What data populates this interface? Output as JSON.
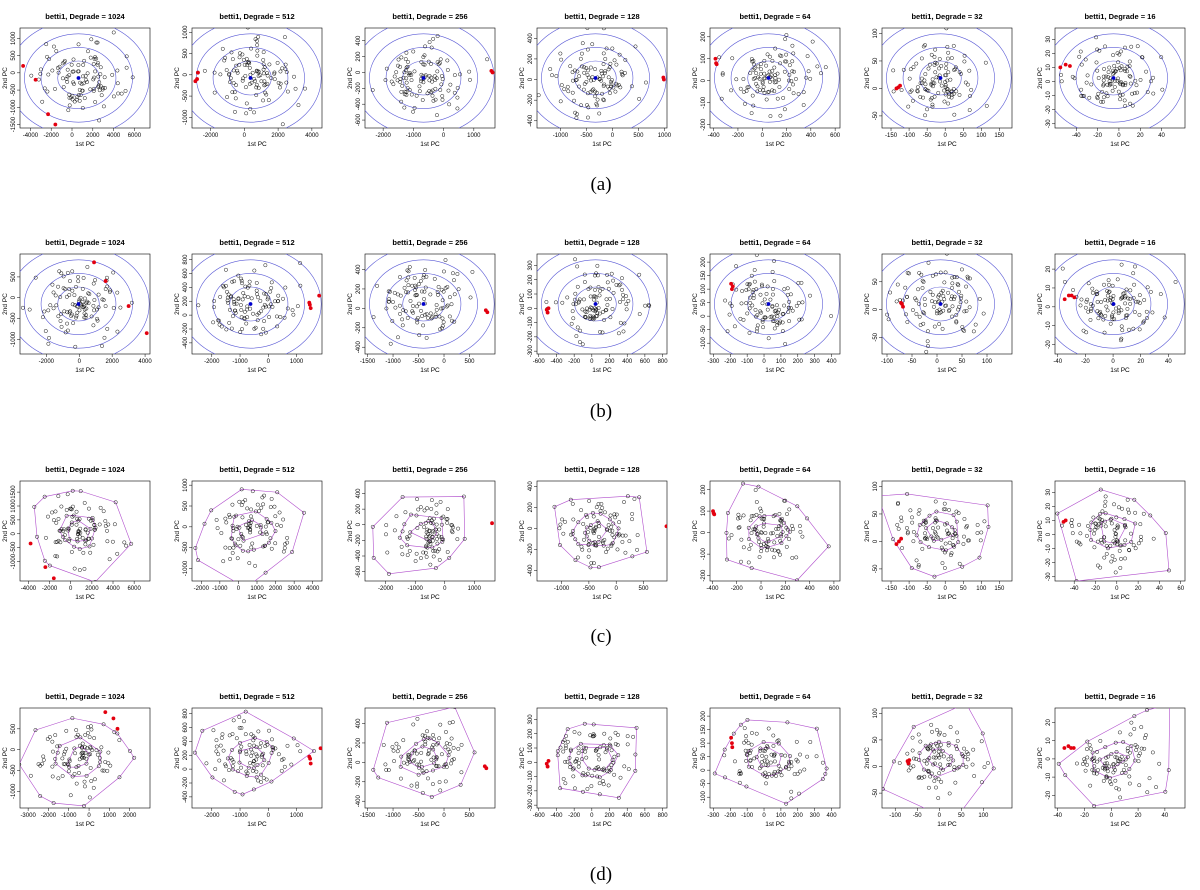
{
  "figure": {
    "row_labels": [
      "(a)",
      "(b)",
      "(c)",
      "(d)"
    ]
  },
  "colors": {
    "points": "#000000",
    "outliers": "#e3000f",
    "center": "#0000cc",
    "ellipse": "#5b5bd6",
    "hull": "#b04dcc"
  },
  "chart_data": [
    {
      "row": 0,
      "type": "scatter",
      "overlay": "ellipse",
      "title": "betti1, Degrade = 1024",
      "xlabel": "1st PC",
      "ylabel": "2nd PC",
      "xlim": [
        -5000,
        7500
      ],
      "ylim": [
        -1600,
        1300
      ],
      "xticks": [
        -4000,
        -2000,
        0,
        2000,
        4000,
        6000
      ],
      "yticks": [
        -1500,
        -1000,
        -500,
        0,
        500,
        1000
      ],
      "outliers": [
        [
          -4700,
          200
        ],
        [
          -3500,
          -200
        ],
        [
          -2300,
          -1200
        ],
        [
          -1600,
          -1500
        ]
      ]
    },
    {
      "row": 0,
      "type": "scatter",
      "overlay": "ellipse",
      "title": "betti1, Degrade = 512",
      "xlabel": "1st PC",
      "ylabel": "2nd PC",
      "xlim": [
        -3100,
        4600
      ],
      "ylim": [
        -1250,
        1100
      ],
      "xticks": [
        -2000,
        0,
        2000,
        4000
      ],
      "yticks": [
        -1000,
        -500,
        0,
        500,
        1000
      ],
      "outliers": [
        [
          -2750,
          50
        ],
        [
          -2800,
          -100
        ],
        [
          -2900,
          -150
        ]
      ]
    },
    {
      "row": 0,
      "type": "scatter",
      "overlay": "ellipse",
      "title": "betti1, Degrade = 256",
      "xlabel": "1st PC",
      "ylabel": "2nd PC",
      "xlim": [
        -2600,
        1700
      ],
      "ylim": [
        -700,
        560
      ],
      "xticks": [
        -2000,
        -1000,
        0,
        1000
      ],
      "yticks": [
        -600,
        -400,
        -200,
        0,
        200,
        400
      ],
      "outliers": [
        [
          1620,
          0
        ],
        [
          1580,
          20
        ]
      ]
    },
    {
      "row": 0,
      "type": "scatter",
      "overlay": "ellipse",
      "title": "betti1, Degrade = 128",
      "xlabel": "1st PC",
      "ylabel": "2nd PC",
      "xlim": [
        -1450,
        1050
      ],
      "ylim": [
        -470,
        500
      ],
      "xticks": [
        -1000,
        -500,
        0,
        500,
        1000
      ],
      "yticks": [
        -400,
        -200,
        0,
        200,
        400
      ],
      "outliers": [
        [
          980,
          20
        ],
        [
          990,
          0
        ]
      ]
    },
    {
      "row": 0,
      "type": "scatter",
      "overlay": "ellipse",
      "title": "betti1, Degrade = 64",
      "xlabel": "1st PC",
      "ylabel": "2nd PC",
      "xlim": [
        -430,
        640
      ],
      "ylim": [
        -215,
        240
      ],
      "xticks": [
        -400,
        -200,
        0,
        200,
        400,
        600
      ],
      "yticks": [
        -200,
        -100,
        0,
        100,
        200
      ],
      "outliers": [
        [
          -385,
          100
        ],
        [
          -380,
          80
        ],
        [
          -375,
          75
        ]
      ]
    },
    {
      "row": 0,
      "type": "scatter",
      "overlay": "ellipse",
      "title": "betti1, Degrade = 32",
      "xlabel": "1st PC",
      "ylabel": "2nd PC",
      "xlim": [
        -175,
        185
      ],
      "ylim": [
        -72,
        110
      ],
      "xticks": [
        -150,
        -100,
        -50,
        0,
        50,
        100,
        150
      ],
      "yticks": [
        -50,
        0,
        50,
        100
      ],
      "outliers": [
        [
          -135,
          0
        ],
        [
          -130,
          2
        ],
        [
          -125,
          5
        ]
      ]
    },
    {
      "row": 0,
      "type": "scatter",
      "overlay": "ellipse",
      "title": "betti1, Degrade = 16",
      "xlabel": "1st PC",
      "ylabel": "2nd PC",
      "xlim": [
        -60,
        62
      ],
      "ylim": [
        -33,
        38
      ],
      "xticks": [
        -40,
        -20,
        0,
        20,
        40
      ],
      "yticks": [
        -30,
        -20,
        -10,
        0,
        10,
        20,
        30
      ],
      "outliers": [
        [
          -55,
          10
        ],
        [
          -50,
          12
        ],
        [
          -46,
          11
        ]
      ]
    },
    {
      "row": 1,
      "type": "scatter",
      "overlay": "ellipse",
      "title": "betti1, Degrade = 1024",
      "xlabel": "1st PC",
      "ylabel": "2nd PC",
      "xlim": [
        -3600,
        4300
      ],
      "ylim": [
        -1350,
        1050
      ],
      "xticks": [
        -2000,
        0,
        2000,
        4000
      ],
      "yticks": [
        -1000,
        -500,
        0,
        500
      ],
      "outliers": [
        [
          900,
          850
        ],
        [
          1600,
          400
        ],
        [
          3000,
          -200
        ],
        [
          4100,
          -850
        ]
      ]
    },
    {
      "row": 1,
      "type": "scatter",
      "overlay": "ellipse",
      "title": "betti1, Degrade = 512",
      "xlabel": "1st PC",
      "ylabel": "2nd PC",
      "xlim": [
        -2700,
        1900
      ],
      "ylim": [
        -560,
        880
      ],
      "xticks": [
        -2000,
        -1000,
        0,
        1000
      ],
      "yticks": [
        -400,
        -200,
        0,
        200,
        400,
        600,
        800
      ],
      "outliers": [
        [
          1450,
          180
        ],
        [
          1470,
          150
        ],
        [
          1500,
          100
        ],
        [
          1800,
          280
        ]
      ]
    },
    {
      "row": 1,
      "type": "scatter",
      "overlay": "ellipse",
      "title": "betti1, Degrade = 256",
      "xlabel": "1st PC",
      "ylabel": "2nd PC",
      "xlim": [
        -1550,
        1000
      ],
      "ylim": [
        -470,
        560
      ],
      "xticks": [
        -1500,
        -1000,
        -500,
        0,
        500
      ],
      "yticks": [
        -400,
        -200,
        0,
        200,
        400
      ],
      "outliers": [
        [
          820,
          -20
        ],
        [
          850,
          -40
        ]
      ]
    },
    {
      "row": 1,
      "type": "scatter",
      "overlay": "ellipse",
      "title": "betti1, Degrade = 128",
      "xlabel": "1st PC",
      "ylabel": "2nd PC",
      "xlim": [
        -620,
        850
      ],
      "ylim": [
        -320,
        380
      ],
      "xticks": [
        -600,
        -400,
        -200,
        0,
        200,
        400,
        600,
        800
      ],
      "yticks": [
        -300,
        -200,
        -100,
        0,
        100,
        200,
        300
      ],
      "outliers": [
        [
          -510,
          -10
        ],
        [
          -500,
          -30
        ],
        [
          -490,
          0
        ]
      ]
    },
    {
      "row": 1,
      "type": "scatter",
      "overlay": "ellipse",
      "title": "betti1, Degrade = 64",
      "xlabel": "1st PC",
      "ylabel": "2nd PC",
      "xlim": [
        -320,
        450
      ],
      "ylim": [
        -140,
        230
      ],
      "xticks": [
        -300,
        -200,
        -100,
        0,
        100,
        200,
        300,
        400
      ],
      "yticks": [
        -100,
        -50,
        0,
        50,
        100,
        150,
        200
      ],
      "outliers": [
        [
          -195,
          120
        ],
        [
          -190,
          100
        ],
        [
          -185,
          110
        ]
      ]
    },
    {
      "row": 1,
      "type": "scatter",
      "overlay": "ellipse",
      "title": "betti1, Degrade = 32",
      "xlabel": "1st PC",
      "ylabel": "2nd PC",
      "xlim": [
        -110,
        150
      ],
      "ylim": [
        -80,
        100
      ],
      "xticks": [
        -100,
        -50,
        0,
        50,
        100
      ],
      "yticks": [
        -50,
        0,
        50
      ],
      "outliers": [
        [
          -70,
          10
        ],
        [
          -68,
          5
        ],
        [
          -72,
          12
        ]
      ]
    },
    {
      "row": 1,
      "type": "scatter",
      "overlay": "ellipse",
      "title": "betti1, Degrade = 16",
      "xlabel": "1st PC",
      "ylabel": "2nd PC",
      "xlim": [
        -42,
        52
      ],
      "ylim": [
        -25,
        28
      ],
      "xticks": [
        -40,
        -20,
        0,
        20,
        40
      ],
      "yticks": [
        -20,
        -10,
        0,
        10,
        20
      ],
      "outliers": [
        [
          -35,
          4
        ],
        [
          -32,
          6
        ],
        [
          -30,
          6
        ],
        [
          -28,
          5
        ]
      ]
    },
    {
      "row": 2,
      "type": "scatter",
      "overlay": "hull",
      "title": "betti1, Degrade = 1024",
      "xlabel": "1st PC",
      "ylabel": "2nd PC",
      "xlim": [
        -4800,
        7500
      ],
      "ylim": [
        -1700,
        1900
      ],
      "xticks": [
        -4000,
        -2000,
        0,
        2000,
        4000,
        6000
      ],
      "yticks": [
        -1000,
        -500,
        0,
        500,
        1000,
        1500
      ],
      "outliers": [
        [
          -3800,
          -350
        ],
        [
          -2400,
          -1200
        ],
        [
          -1600,
          -1600
        ]
      ]
    },
    {
      "row": 2,
      "type": "scatter",
      "overlay": "hull",
      "title": "betti1, Degrade = 512",
      "xlabel": "1st PC",
      "ylabel": "2nd PC",
      "xlim": [
        -2500,
        4500
      ],
      "ylim": [
        -1300,
        1100
      ],
      "xticks": [
        -2000,
        -1000,
        0,
        1000,
        2000,
        3000,
        4000
      ],
      "yticks": [
        -1000,
        -500,
        0,
        500,
        1000
      ],
      "outliers": []
    },
    {
      "row": 2,
      "type": "scatter",
      "overlay": "hull",
      "title": "betti1, Degrade = 256",
      "xlabel": "1st PC",
      "ylabel": "2nd PC",
      "xlim": [
        -2700,
        1700
      ],
      "ylim": [
        -720,
        560
      ],
      "xticks": [
        -2000,
        -1000,
        0,
        1000
      ],
      "yticks": [
        -600,
        -400,
        -200,
        0,
        200,
        400
      ],
      "outliers": [
        [
          1600,
          20
        ]
      ]
    },
    {
      "row": 2,
      "type": "scatter",
      "overlay": "hull",
      "title": "betti1, Degrade = 128",
      "xlabel": "1st PC",
      "ylabel": "2nd PC",
      "xlim": [
        -1450,
        930
      ],
      "ylim": [
        -500,
        450
      ],
      "xticks": [
        -1000,
        -500,
        0,
        500
      ],
      "yticks": [
        -400,
        -200,
        0,
        200,
        400
      ],
      "outliers": [
        [
          920,
          20
        ]
      ]
    },
    {
      "row": 2,
      "type": "scatter",
      "overlay": "hull",
      "title": "betti1, Degrade = 64",
      "xlabel": "1st PC",
      "ylabel": "2nd PC",
      "xlim": [
        -420,
        650
      ],
      "ylim": [
        -225,
        240
      ],
      "xticks": [
        -400,
        -200,
        0,
        200,
        400,
        600
      ],
      "yticks": [
        -200,
        -100,
        0,
        100,
        200
      ],
      "outliers": [
        [
          -395,
          100
        ],
        [
          -390,
          90
        ],
        [
          -385,
          85
        ]
      ]
    },
    {
      "row": 2,
      "type": "scatter",
      "overlay": "hull",
      "title": "betti1, Degrade = 32",
      "xlabel": "1st PC",
      "ylabel": "2nd PC",
      "xlim": [
        -175,
        185
      ],
      "ylim": [
        -72,
        110
      ],
      "xticks": [
        -150,
        -100,
        -50,
        0,
        50,
        100,
        150
      ],
      "yticks": [
        -50,
        0,
        50,
        100
      ],
      "outliers": [
        [
          -135,
          -5
        ],
        [
          -128,
          0
        ],
        [
          -122,
          5
        ]
      ]
    },
    {
      "row": 2,
      "type": "scatter",
      "overlay": "hull",
      "title": "betti1, Degrade = 16",
      "xlabel": "1st PC",
      "ylabel": "2nd PC",
      "xlim": [
        -58,
        64
      ],
      "ylim": [
        -33,
        38
      ],
      "xticks": [
        -40,
        -20,
        0,
        20,
        40,
        60
      ],
      "yticks": [
        -30,
        -20,
        -10,
        0,
        10,
        20,
        30
      ],
      "outliers": [
        [
          -50,
          9
        ],
        [
          -48,
          10
        ]
      ]
    },
    {
      "row": 3,
      "type": "scatter",
      "overlay": "hull",
      "title": "betti1, Degrade = 1024",
      "xlabel": "1st PC",
      "ylabel": "2nd PC",
      "xlim": [
        -3400,
        3000
      ],
      "ylim": [
        -1400,
        1000
      ],
      "xticks": [
        -3000,
        -2000,
        -1000,
        0,
        1000,
        2000
      ],
      "yticks": [
        -1000,
        -500,
        0,
        500
      ],
      "outliers": [
        [
          800,
          900
        ],
        [
          1200,
          750
        ],
        [
          1400,
          500
        ]
      ]
    },
    {
      "row": 3,
      "type": "scatter",
      "overlay": "hull",
      "title": "betti1, Degrade = 512",
      "xlabel": "1st PC",
      "ylabel": "2nd PC",
      "xlim": [
        -2700,
        1900
      ],
      "ylim": [
        -560,
        880
      ],
      "xticks": [
        -2000,
        -1000,
        0,
        1000
      ],
      "yticks": [
        -400,
        -200,
        0,
        200,
        400,
        600,
        800
      ],
      "outliers": [
        [
          1450,
          180
        ],
        [
          1480,
          150
        ],
        [
          1500,
          80
        ],
        [
          1850,
          300
        ]
      ]
    },
    {
      "row": 3,
      "type": "scatter",
      "overlay": "hull",
      "title": "betti1, Degrade = 256",
      "xlabel": "1st PC",
      "ylabel": "2nd PC",
      "xlim": [
        -1550,
        1000
      ],
      "ylim": [
        -470,
        560
      ],
      "xticks": [
        -1500,
        -1000,
        -500,
        0,
        500
      ],
      "yticks": [
        -400,
        -200,
        0,
        200,
        400
      ],
      "outliers": [
        [
          800,
          -40
        ],
        [
          830,
          -60
        ]
      ]
    },
    {
      "row": 3,
      "type": "scatter",
      "overlay": "hull",
      "title": "betti1, Degrade = 128",
      "xlabel": "1st PC",
      "ylabel": "2nd PC",
      "xlim": [
        -620,
        850
      ],
      "ylim": [
        -320,
        380
      ],
      "xticks": [
        -600,
        -400,
        -200,
        0,
        200,
        400,
        600,
        800
      ],
      "yticks": [
        -300,
        -200,
        -100,
        0,
        100,
        200,
        300
      ],
      "outliers": [
        [
          -510,
          -10
        ],
        [
          -500,
          -30
        ],
        [
          -490,
          10
        ]
      ]
    },
    {
      "row": 3,
      "type": "scatter",
      "overlay": "hull",
      "title": "betti1, Degrade = 64",
      "xlabel": "1st PC",
      "ylabel": "2nd PC",
      "xlim": [
        -320,
        450
      ],
      "ylim": [
        -140,
        230
      ],
      "xticks": [
        -300,
        -200,
        -100,
        0,
        100,
        200,
        300,
        400
      ],
      "yticks": [
        -100,
        -50,
        0,
        50,
        100,
        150,
        200
      ],
      "outliers": [
        [
          -195,
          120
        ],
        [
          -190,
          100
        ],
        [
          -188,
          85
        ]
      ]
    },
    {
      "row": 3,
      "type": "scatter",
      "overlay": "hull",
      "title": "betti1, Degrade = 32",
      "xlabel": "1st PC",
      "ylabel": "2nd PC",
      "xlim": [
        -130,
        165
      ],
      "ylim": [
        -78,
        110
      ],
      "xticks": [
        -100,
        -50,
        0,
        50,
        100
      ],
      "yticks": [
        -50,
        0,
        50,
        100
      ],
      "outliers": [
        [
          -72,
          10
        ],
        [
          -70,
          6
        ],
        [
          -68,
          12
        ]
      ]
    },
    {
      "row": 3,
      "type": "scatter",
      "overlay": "hull",
      "title": "betti1, Degrade = 16",
      "xlabel": "1st PC",
      "ylabel": "2nd PC",
      "xlim": [
        -42,
        55
      ],
      "ylim": [
        -27,
        28
      ],
      "xticks": [
        -40,
        -20,
        0,
        20,
        40
      ],
      "yticks": [
        -20,
        -10,
        0,
        10,
        20
      ],
      "outliers": [
        [
          -35,
          6
        ],
        [
          -32,
          7
        ],
        [
          -30,
          6
        ],
        [
          -28,
          6
        ]
      ]
    }
  ]
}
